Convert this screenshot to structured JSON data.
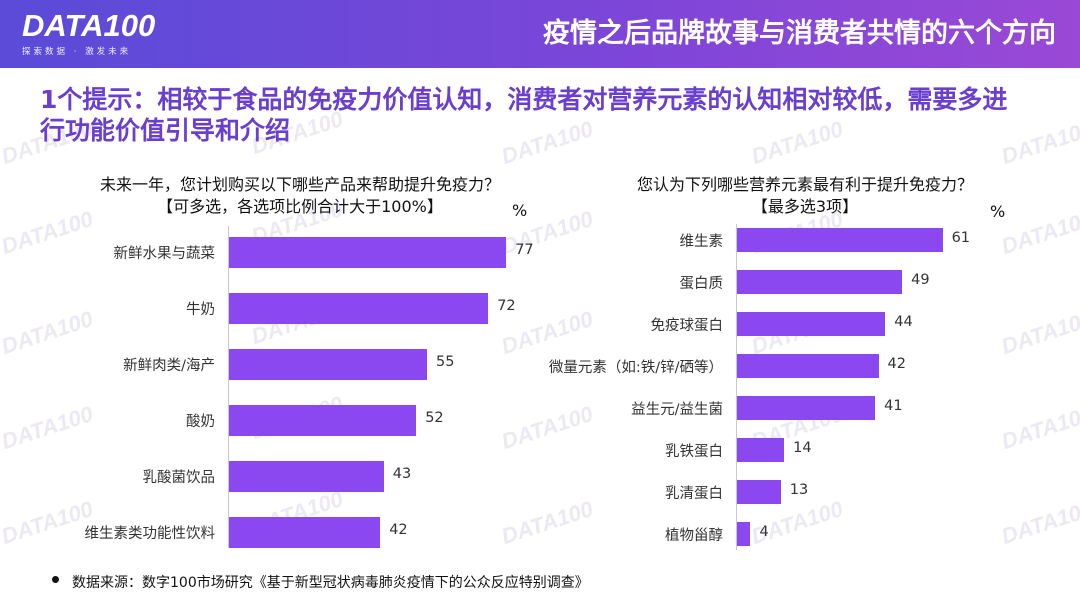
{
  "header": {
    "logo_text": "DATA100",
    "logo_tagline": "探索数据 · 激发未来",
    "title": "疫情之后品牌故事与消费者共情的六个方向"
  },
  "headline": "1个提示：相较于食品的免疫力价值认知，消费者对营养元素的认知相对较低，需要多进行功能价值引导和介绍",
  "watermark_text": "DATA100",
  "chart_data": [
    {
      "type": "bar",
      "orientation": "horizontal",
      "title": "未来一年，您计划购买以下哪些产品来帮助提升免疫力？",
      "subtitle": "【可多选，各选项比例合计大于100%】",
      "unit": "%",
      "categories": [
        "新鲜水果与蔬菜",
        "牛奶",
        "新鲜肉类/海产",
        "酸奶",
        "乳酸菌饮品",
        "维生素类功能性饮料"
      ],
      "values": [
        77,
        72,
        55,
        52,
        43,
        42
      ],
      "color": "#8b48f0"
    },
    {
      "type": "bar",
      "orientation": "horizontal",
      "title": "您认为下列哪些营养元素最有利于提升免疫力？",
      "subtitle": "【最多选3项】",
      "unit": "%",
      "categories": [
        "维生素",
        "蛋白质",
        "免疫球蛋白",
        "微量元素（如:铁/锌/硒等）",
        "益生元/益生菌",
        "乳铁蛋白",
        "乳清蛋白",
        "植物甾醇"
      ],
      "values": [
        61,
        49,
        44,
        42,
        41,
        14,
        13,
        4
      ],
      "color": "#8b48f0"
    }
  ],
  "footer": {
    "source": "数据来源：数字100市场研究《基于新型冠状病毒肺炎疫情下的公众反应特别调查》"
  }
}
